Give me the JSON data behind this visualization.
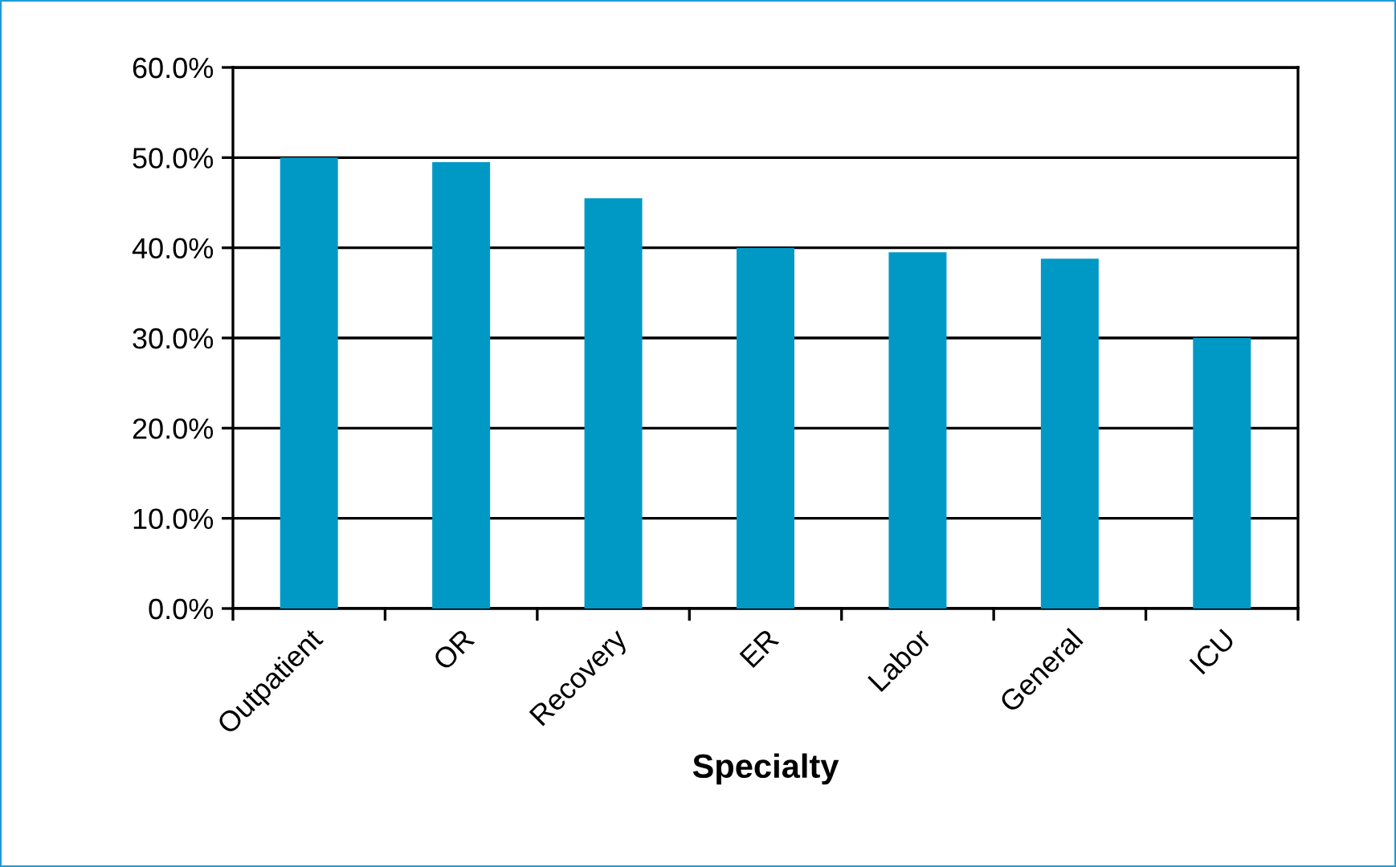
{
  "chart_data": {
    "type": "bar",
    "xlabel": "Specialty",
    "categories": [
      "Outpatient",
      "OR",
      "Recovery",
      "ER",
      "Labor",
      "General",
      "ICU"
    ],
    "values": [
      50.0,
      49.5,
      45.5,
      40.0,
      39.5,
      38.8,
      30.0
    ],
    "color": "#0099c6",
    "ylim": [
      0,
      60
    ],
    "yticks": [
      {
        "value": 0,
        "label": "0.0%"
      },
      {
        "value": 10,
        "label": "10.0%"
      },
      {
        "value": 20,
        "label": "20.0%"
      },
      {
        "value": 30,
        "label": "30.0%"
      },
      {
        "value": 40,
        "label": "40.0%"
      },
      {
        "value": 50,
        "label": "50.0%"
      },
      {
        "value": 60,
        "label": "60.0%"
      }
    ],
    "grid": "y"
  }
}
